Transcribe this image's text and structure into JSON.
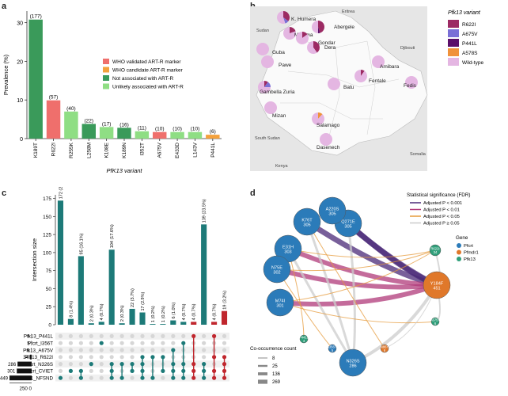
{
  "figure": {
    "panel_letters": [
      "a",
      "b",
      "c",
      "d"
    ]
  },
  "chart_data": [
    {
      "panel": "a",
      "type": "bar",
      "ylabel": "Prevalence (%)",
      "xlabel": "PfK13 variant",
      "ylim": [
        0,
        33
      ],
      "yticks": [
        0,
        10,
        20,
        30
      ],
      "grid": false,
      "legend_position": "center-right",
      "legend": [
        {
          "label": "WHO validated ART-R marker",
          "color": "#ef6f6c"
        },
        {
          "label": "WHO candidate ART-R marker",
          "color": "#f4a13c"
        },
        {
          "label": "Not associated with ART-R",
          "color": "#3a9a5a"
        },
        {
          "label": "Unlikely associated with ART-R",
          "color": "#8fde84"
        }
      ],
      "categories": [
        "K189T",
        "R622I",
        "R255K",
        "L258M",
        "K108E",
        "K189N",
        "I352T",
        "A675V",
        "E433D",
        "L143V",
        "P441L"
      ],
      "values": [
        30.8,
        9.9,
        7.0,
        3.8,
        3.0,
        2.8,
        1.9,
        1.7,
        1.7,
        1.7,
        1.0
      ],
      "counts": [
        "(177)",
        "(57)",
        "(40)",
        "(22)",
        "(17)",
        "(16)",
        "(11)",
        "(10)",
        "(10)",
        "(10)",
        "(6)"
      ],
      "bar_groups": [
        2,
        0,
        3,
        2,
        3,
        2,
        3,
        0,
        3,
        3,
        1
      ]
    },
    {
      "panel": "b",
      "type": "map",
      "legend_title": "Pfk13 variant",
      "legend": [
        {
          "label": "R622I",
          "color": "#9c2a63"
        },
        {
          "label": "A675V",
          "color": "#7a6fd6"
        },
        {
          "label": "P441L",
          "color": "#5b0f6a"
        },
        {
          "label": "A578S",
          "color": "#f0923a"
        },
        {
          "label": "Wild-type",
          "color": "#e4b6e2"
        }
      ],
      "places": [
        "Eritrea",
        "Sudan",
        "Djibouti",
        "South Sudan",
        "Somalia",
        "Kenya",
        "K. Humera",
        "Metema",
        "Abergele",
        "Gondar",
        "Guba",
        "Pawe",
        "Dera",
        "Amibara",
        "Fentale",
        "Fedis",
        "Gambella Zuria",
        "Batu",
        "Mizan",
        "Salamago",
        "Dasenech"
      ],
      "site_pies": [
        {
          "site": "K. Humera",
          "mutant_share": [
            0.35,
            0.1,
            0,
            0
          ],
          "wild": 0.55
        },
        {
          "site": "Metema",
          "mutant_share": [
            0.2,
            0,
            0,
            0
          ],
          "wild": 0.8
        },
        {
          "site": "Abergele",
          "mutant_share": [
            0.45,
            0,
            0.05,
            0
          ],
          "wild": 0.5
        },
        {
          "site": "Gondar",
          "mutant_share": [
            0.15,
            0,
            0,
            0
          ],
          "wild": 0.85
        },
        {
          "site": "Guba",
          "mutant_share": [
            0,
            0,
            0,
            0
          ],
          "wild": 1
        },
        {
          "site": "Pawe",
          "mutant_share": [
            0,
            0,
            0,
            0
          ],
          "wild": 1
        },
        {
          "site": "Dera",
          "mutant_share": [
            0.4,
            0,
            0,
            0
          ],
          "wild": 0.6
        },
        {
          "site": "Amibara",
          "mutant_share": [
            0,
            0,
            0,
            0
          ],
          "wild": 1
        },
        {
          "site": "Fentale",
          "mutant_share": [
            0.1,
            0,
            0,
            0
          ],
          "wild": 0.9
        },
        {
          "site": "Fedis",
          "mutant_share": [
            0,
            0,
            0,
            0
          ],
          "wild": 1
        },
        {
          "site": "Gambella Zuria",
          "mutant_share": [
            0.1,
            0.15,
            0,
            0
          ],
          "wild": 0.75
        },
        {
          "site": "Batu",
          "mutant_share": [
            0,
            0,
            0,
            0
          ],
          "wild": 1
        },
        {
          "site": "Mizan",
          "mutant_share": [
            0,
            0,
            0,
            0
          ],
          "wild": 1
        },
        {
          "site": "Salamago",
          "mutant_share": [
            0,
            0,
            0,
            0.12
          ],
          "wild": 0.88
        },
        {
          "site": "Dasenech",
          "mutant_share": [
            0,
            0,
            0,
            0
          ],
          "wild": 1
        }
      ]
    },
    {
      "panel": "c",
      "type": "upset",
      "ylabel": "Intersection size",
      "ylim": [
        0,
        180
      ],
      "yticks": [
        0,
        25,
        50,
        75,
        100,
        125,
        150,
        175
      ],
      "set_size_ticks": [
        "250",
        "0"
      ],
      "sets": [
        {
          "name": "Pfk13_P441L",
          "size": 4
        },
        {
          "name": "Pfcrt_I356T",
          "size": 5
        },
        {
          "name": "Pfk13_A675V",
          "size": 6
        },
        {
          "name": "Pfk13_R622I",
          "size": 34
        },
        {
          "name": "Pfcrt_N326S",
          "size": 286
        },
        {
          "name": "Pfcrt_CVIET",
          "size": 301
        },
        {
          "name": "Pfmdr1_NFSND",
          "size": 449
        }
      ],
      "bars": [
        {
          "value": 172,
          "label": "172 (29.1%)",
          "color": "#1d7a78",
          "members": [
            6
          ]
        },
        {
          "value": 8,
          "label": "8 (1.4%)",
          "color": "#1d7a78",
          "members": [
            5
          ]
        },
        {
          "value": 95,
          "label": "95 (16.1%)",
          "color": "#1d7a78",
          "members": [
            5,
            6
          ]
        },
        {
          "value": 2,
          "label": "2 (0.3%)",
          "color": "#1d7a78",
          "members": [
            4
          ]
        },
        {
          "value": 4,
          "label": "4 (0.7%)",
          "color": "#1d7a78",
          "members": [
            1
          ]
        },
        {
          "value": 104,
          "label": "104 (17.6%)",
          "color": "#1d7a78",
          "members": [
            4,
            5,
            6
          ]
        },
        {
          "value": 2,
          "label": "2 (0.3%)",
          "color": "#1d7a78",
          "members": [
            4,
            6
          ]
        },
        {
          "value": 22,
          "label": "22 (3.7%)",
          "color": "#1d7a78",
          "members": [
            4,
            5
          ]
        },
        {
          "value": 17,
          "label": "17 (2.9%)",
          "color": "#1d7a78",
          "members": [
            3,
            4,
            5,
            6
          ]
        },
        {
          "value": 1,
          "label": "1 (0.2%)",
          "color": "#1d7a78",
          "members": [
            3,
            6
          ]
        },
        {
          "value": 1,
          "label": "1 (0.2%)",
          "color": "#1d7a78",
          "members": [
            3,
            5
          ]
        },
        {
          "value": 6,
          "label": "6 (1.0%)",
          "color": "#1d7a78",
          "members": [
            2,
            4,
            5,
            6
          ]
        },
        {
          "value": 4,
          "label": "4 (0.7%)",
          "color": "#1d7a78",
          "members": [
            1,
            4,
            5,
            6
          ]
        },
        {
          "value": 4,
          "label": "4 (0.7%)",
          "color": "#c0262d",
          "members": [
            0,
            4,
            5,
            6
          ]
        },
        {
          "value": 139,
          "label": "139 (23.5%)",
          "color": "#1d7a78",
          "members": [
            4,
            5,
            6
          ]
        },
        {
          "value": 4,
          "label": "4 (0.7%)",
          "color": "#c0262d",
          "members": [
            0,
            3,
            5,
            6
          ]
        },
        {
          "value": 19,
          "label": "19 (3.2%)",
          "color": "#c0262d",
          "members": [
            3,
            4,
            5,
            6
          ]
        }
      ]
    },
    {
      "panel": "d",
      "type": "network",
      "legend_significance_title": "Statistical significance (FDR)",
      "significance_levels": [
        {
          "label": "Adjusted P < 0.001",
          "color": "#4b2a78"
        },
        {
          "label": "Adjusted P < 0.01",
          "color": "#b03a7a"
        },
        {
          "label": "Adjusted P < 0.05",
          "color": "#e69a3a"
        },
        {
          "label": "Adjusted P ≥ 0.05",
          "color": "#cccccc"
        }
      ],
      "legend_gene_title": "Gene",
      "genes": [
        {
          "label": "Pfcrt",
          "color": "#2b7bb9"
        },
        {
          "label": "Pfmdr1",
          "color": "#e0782a"
        },
        {
          "label": "Pfk13",
          "color": "#2f9f7a"
        }
      ],
      "legend_count_title": "Co-occurrence count",
      "count_levels": [
        "8",
        "25",
        "136",
        "269"
      ],
      "nodes": [
        {
          "name": "Q271E",
          "count": "305",
          "gene": "Pfcrt"
        },
        {
          "name": "K76T",
          "count": "305",
          "gene": "Pfcrt"
        },
        {
          "name": "A220S",
          "count": "305",
          "gene": "Pfcrt"
        },
        {
          "name": "E31H",
          "count": "303",
          "gene": "Pfcrt"
        },
        {
          "name": "N75E",
          "count": "302",
          "gene": "Pfcrt"
        },
        {
          "name": "M74I",
          "count": "301",
          "gene": "Pfcrt"
        },
        {
          "name": "N326S",
          "count": "286",
          "gene": "Pfcrt"
        },
        {
          "name": "Y184F",
          "count": "451",
          "gene": "Pfmdr1"
        },
        {
          "name": "R622I",
          "count": "34",
          "gene": "Pfk13"
        },
        {
          "name": "A675V",
          "count": "6",
          "gene": "Pfk13"
        },
        {
          "name": "P441L",
          "count": "4",
          "gene": "Pfk13"
        },
        {
          "name": "I356T",
          "count": "5",
          "gene": "Pfcrt"
        },
        {
          "name": "N86Y",
          "count": "6",
          "gene": "Pfmdr1"
        }
      ]
    }
  ]
}
